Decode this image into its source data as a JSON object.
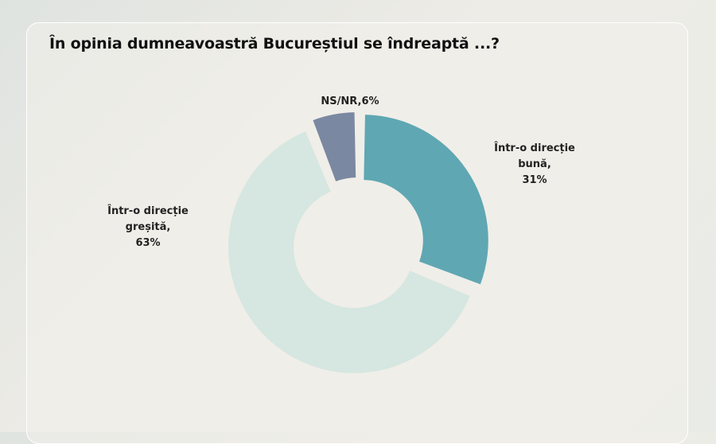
{
  "chart_data": {
    "type": "donut",
    "title": "În opinia dumneavoastră Bucureștiul se îndreaptă ...?",
    "categories": [
      "Într-o direcție bună,",
      "Într-o direcție greșită,",
      "NS/NR,"
    ],
    "values": [
      31,
      63,
      6
    ],
    "value_labels": [
      "31%",
      "63%",
      "6%"
    ],
    "colors": [
      "#5fa7b3",
      "#d6e6e1",
      "#7b88a2"
    ]
  }
}
